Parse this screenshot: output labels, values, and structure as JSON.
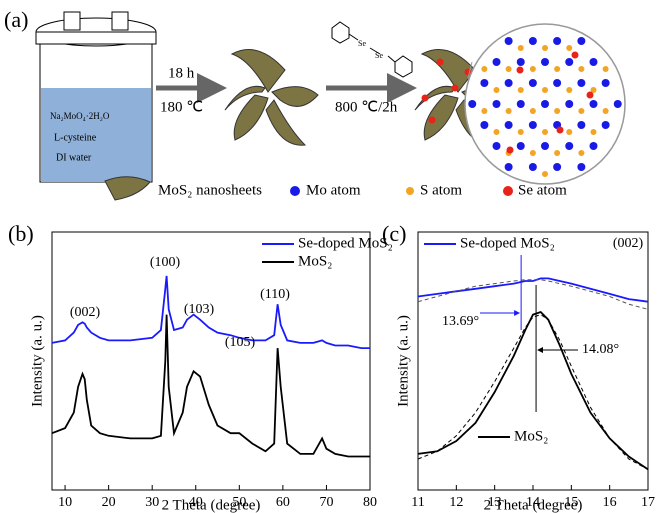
{
  "panel_a": {
    "label": "(a)",
    "precursors": [
      "Na₂MoO₄·2H₂O",
      "L-cysteine",
      "DI water"
    ],
    "step1_time": "18 h",
    "step1_temp": "180 ℃",
    "step2": "800 ℃/2h",
    "molecule_labels": [
      "Se",
      "Se"
    ],
    "legend": [
      "MoS₂ nanosheets",
      "Mo atom",
      "S atom",
      "Se atom"
    ]
  },
  "chart_data": [
    {
      "type": "line",
      "panel_label": "(b)",
      "xlabel": "2 Theta (degree)",
      "ylabel": "Intensity (a. u.)",
      "xlim": [
        7,
        80
      ],
      "xticks": [
        10,
        20,
        30,
        40,
        50,
        60,
        70,
        80
      ],
      "ylim": [
        0,
        100
      ],
      "annotations": [
        "(002)",
        "(100)",
        "(103)",
        "(105)",
        "(110)"
      ],
      "x": [
        7,
        10,
        12,
        13,
        14,
        14.5,
        15,
        16,
        18,
        20,
        25,
        30,
        32,
        33,
        33.3,
        33.8,
        35,
        37,
        38,
        39.5,
        41,
        43,
        45,
        48,
        50,
        53,
        56,
        58,
        58.8,
        59.5,
        61,
        64,
        67,
        69,
        70,
        72,
        75,
        78,
        80
      ],
      "series": [
        {
          "name": "Se-doped MoS₂",
          "color": "#1a1aff",
          "values": [
            57,
            58,
            61,
            64,
            65,
            64.5,
            63,
            61,
            59,
            58,
            58,
            59,
            62,
            78,
            83,
            70,
            62,
            63,
            66,
            68,
            66,
            63,
            61,
            60,
            59,
            58,
            58,
            60,
            72,
            64,
            58,
            57,
            57,
            58,
            57,
            56,
            56,
            55,
            55
          ]
        },
        {
          "name": "MoS₂",
          "color": "#000000",
          "values": [
            22,
            24,
            30,
            40,
            45,
            43,
            35,
            25,
            22,
            21,
            20,
            20,
            21,
            50,
            68,
            40,
            22,
            30,
            40,
            46,
            44,
            33,
            25,
            22,
            22,
            18,
            15,
            18,
            55,
            40,
            18,
            14,
            14,
            20,
            16,
            14,
            13,
            13,
            13
          ]
        }
      ]
    },
    {
      "type": "line",
      "panel_label": "(c)",
      "xlabel": "2 Theta (degree)",
      "ylabel": "Intensity (a. u.)",
      "xlim": [
        11,
        17
      ],
      "xticks": [
        11,
        12,
        13,
        14,
        15,
        16,
        17
      ],
      "ylim": [
        0,
        100
      ],
      "annotations": [
        "(002)"
      ],
      "peaks": [
        {
          "value": 13.69,
          "label": "13.69°"
        },
        {
          "value": 14.08,
          "label": "14.08°"
        }
      ],
      "x": [
        11,
        11.5,
        12,
        12.5,
        13,
        13.5,
        13.8,
        14,
        14.2,
        14.4,
        14.7,
        15,
        15.5,
        16,
        16.5,
        17
      ],
      "series": [
        {
          "name": "Se-doped MoS₂",
          "color": "#1a1aff",
          "values": [
            75,
            76,
            77,
            78,
            79,
            80,
            81,
            81,
            82,
            82,
            81,
            80,
            78,
            76,
            74,
            73
          ]
        },
        {
          "name": "MoS₂",
          "color": "#000000",
          "values": [
            14,
            15,
            19,
            26,
            38,
            52,
            62,
            68,
            69,
            66,
            56,
            45,
            30,
            20,
            13,
            8
          ]
        },
        {
          "color": "#555555",
          "dash": true,
          "values": [
            73,
            75,
            77,
            79,
            80,
            81,
            81.5,
            81.5,
            81.5,
            81,
            80,
            79,
            77,
            75,
            72,
            70
          ]
        },
        {
          "color": "#000000",
          "dash": true,
          "values": [
            12,
            15,
            21,
            30,
            42,
            55,
            63,
            67,
            68,
            66,
            58,
            48,
            32,
            20,
            12,
            8
          ]
        }
      ]
    }
  ]
}
